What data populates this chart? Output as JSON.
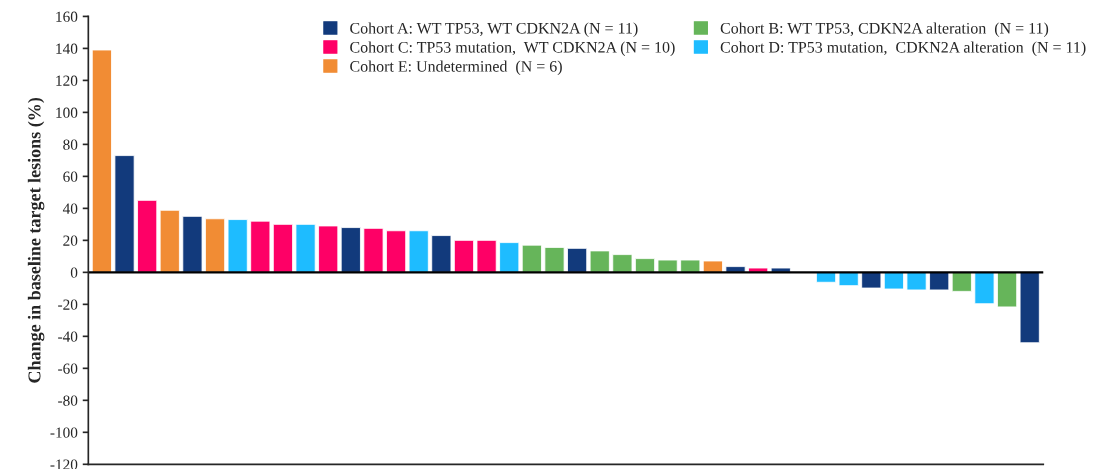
{
  "chart_data": {
    "type": "bar",
    "ylabel": "Change in baseline target lesions (%)",
    "categories": [
      null,
      null,
      null,
      null,
      null,
      null,
      null,
      null,
      null,
      null,
      null,
      null,
      null,
      null,
      null,
      null,
      null,
      null,
      null,
      null,
      null,
      null,
      null,
      null,
      null,
      null,
      null,
      null,
      null,
      null,
      null,
      null,
      null,
      null,
      null,
      null,
      null,
      null,
      null,
      null,
      null,
      null
    ],
    "series": [
      {
        "name": "Cohort A: WT TP53, WT CDKN2A (N = 11)",
        "color": "#123a7c",
        "values": [
          null,
          73,
          null,
          null,
          35,
          null,
          null,
          null,
          null,
          null,
          null,
          28,
          null,
          null,
          null,
          23,
          null,
          null,
          null,
          null,
          null,
          15,
          null,
          null,
          null,
          null,
          null,
          null,
          3.6,
          null,
          2.7,
          null,
          null,
          null,
          -9.8,
          null,
          null,
          -11,
          null,
          null,
          null,
          -44
        ]
      },
      {
        "name": "Cohort B: WT TP53, CDKN2A alteration  (N = 11)",
        "color": "#66b55a",
        "values": [
          null,
          null,
          null,
          null,
          null,
          null,
          null,
          null,
          null,
          null,
          null,
          null,
          null,
          null,
          null,
          null,
          null,
          null,
          null,
          17,
          15.6,
          null,
          13.4,
          11.1,
          8.6,
          7.7,
          7.7,
          null,
          null,
          null,
          null,
          null,
          null,
          null,
          null,
          null,
          null,
          null,
          -11.9,
          null,
          -21.6,
          null
        ]
      },
      {
        "name": "Cohort C: TP53 mutation,  WT CDKN2A (N = 10)",
        "color": "#fe0066",
        "values": [
          null,
          null,
          45,
          null,
          null,
          null,
          null,
          32,
          30,
          null,
          29,
          null,
          27.5,
          26,
          null,
          null,
          20,
          20,
          null,
          null,
          null,
          null,
          null,
          null,
          null,
          null,
          null,
          null,
          null,
          2.7,
          null,
          null,
          null,
          null,
          null,
          null,
          null,
          null,
          null,
          null,
          null,
          null
        ]
      },
      {
        "name": "Cohort D: TP53 mutation,  CDKN2A alteration  (N = 11)",
        "color": "#1ebcff",
        "values": [
          null,
          null,
          null,
          null,
          null,
          null,
          33,
          null,
          null,
          30,
          null,
          null,
          null,
          null,
          26,
          null,
          null,
          null,
          18.6,
          null,
          null,
          null,
          null,
          null,
          null,
          null,
          null,
          null,
          null,
          null,
          null,
          null,
          -6.2,
          -8.3,
          null,
          -10.4,
          -11,
          null,
          null,
          -19.6,
          null,
          null
        ]
      },
      {
        "name": "Cohort E: Undetermined  (N = 6)",
        "color": "#f18c34",
        "values": [
          139,
          null,
          null,
          38.8,
          null,
          33.5,
          null,
          null,
          null,
          null,
          null,
          null,
          null,
          null,
          null,
          null,
          null,
          null,
          null,
          null,
          null,
          null,
          null,
          null,
          null,
          null,
          null,
          7.1,
          null,
          null,
          null,
          null,
          null,
          null,
          null,
          null,
          null,
          null,
          null,
          null,
          null,
          null
        ]
      }
    ],
    "ylim": [
      -120,
      160
    ],
    "yticks": [
      -120,
      -100,
      -80,
      -60,
      -40,
      -20,
      0,
      20,
      40,
      60,
      80,
      100,
      120,
      140,
      160
    ],
    "ref_lines": [
      {
        "axis": "y",
        "value": 0,
        "color": "#000000"
      }
    ],
    "grid": false,
    "legend": "top right"
  }
}
